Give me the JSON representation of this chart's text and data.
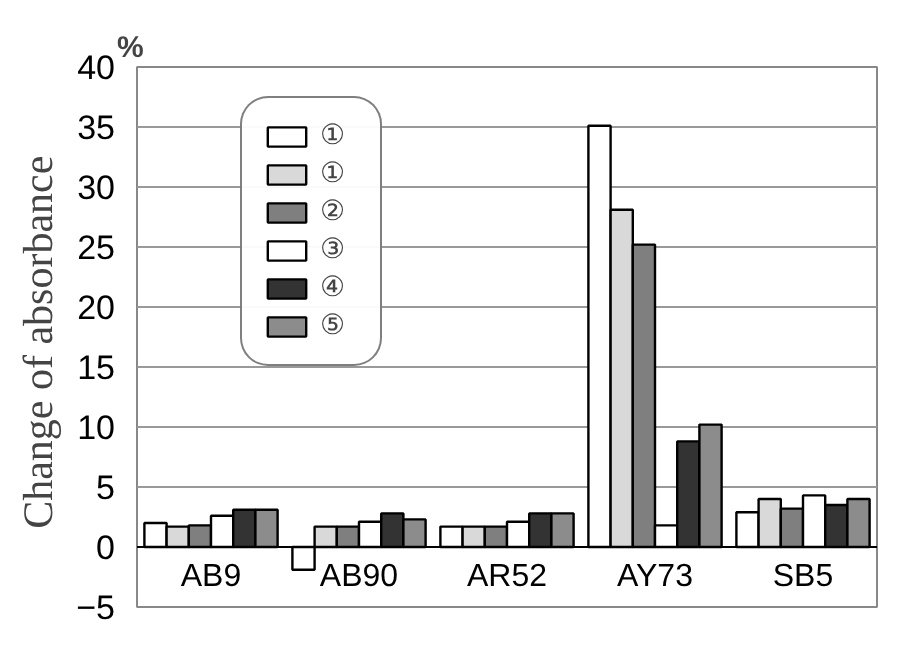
{
  "chart_data": {
    "type": "bar",
    "ylabel": "Change  of absorbance",
    "annotations": [
      "%"
    ],
    "categories": [
      "AB9",
      "AB90",
      "AR52",
      "AY73",
      "SB5"
    ],
    "series": [
      {
        "name": "①",
        "color": "#ffffff",
        "values": [
          2.0,
          -1.9,
          1.7,
          35.1,
          2.9
        ]
      },
      {
        "name": "①",
        "color": "#d9d9d9",
        "values": [
          1.7,
          1.7,
          1.7,
          28.1,
          4.0
        ]
      },
      {
        "name": "②",
        "color": "#7f7f7f",
        "values": [
          1.8,
          1.7,
          1.7,
          25.2,
          3.2
        ]
      },
      {
        "name": "③",
        "color": "#ffffff",
        "values": [
          2.6,
          2.1,
          2.1,
          1.8,
          4.3
        ]
      },
      {
        "name": "④",
        "color": "#333333",
        "values": [
          3.1,
          2.8,
          2.8,
          8.8,
          3.5
        ]
      },
      {
        "name": "⑤",
        "color": "#8c8c8c",
        "values": [
          3.1,
          2.3,
          2.8,
          10.2,
          4.0
        ]
      }
    ],
    "ylim": [
      -5,
      40
    ],
    "yticks": [
      -5,
      0,
      5,
      10,
      15,
      20,
      25,
      30,
      35,
      40
    ],
    "grid": "y",
    "legend": "top left"
  }
}
